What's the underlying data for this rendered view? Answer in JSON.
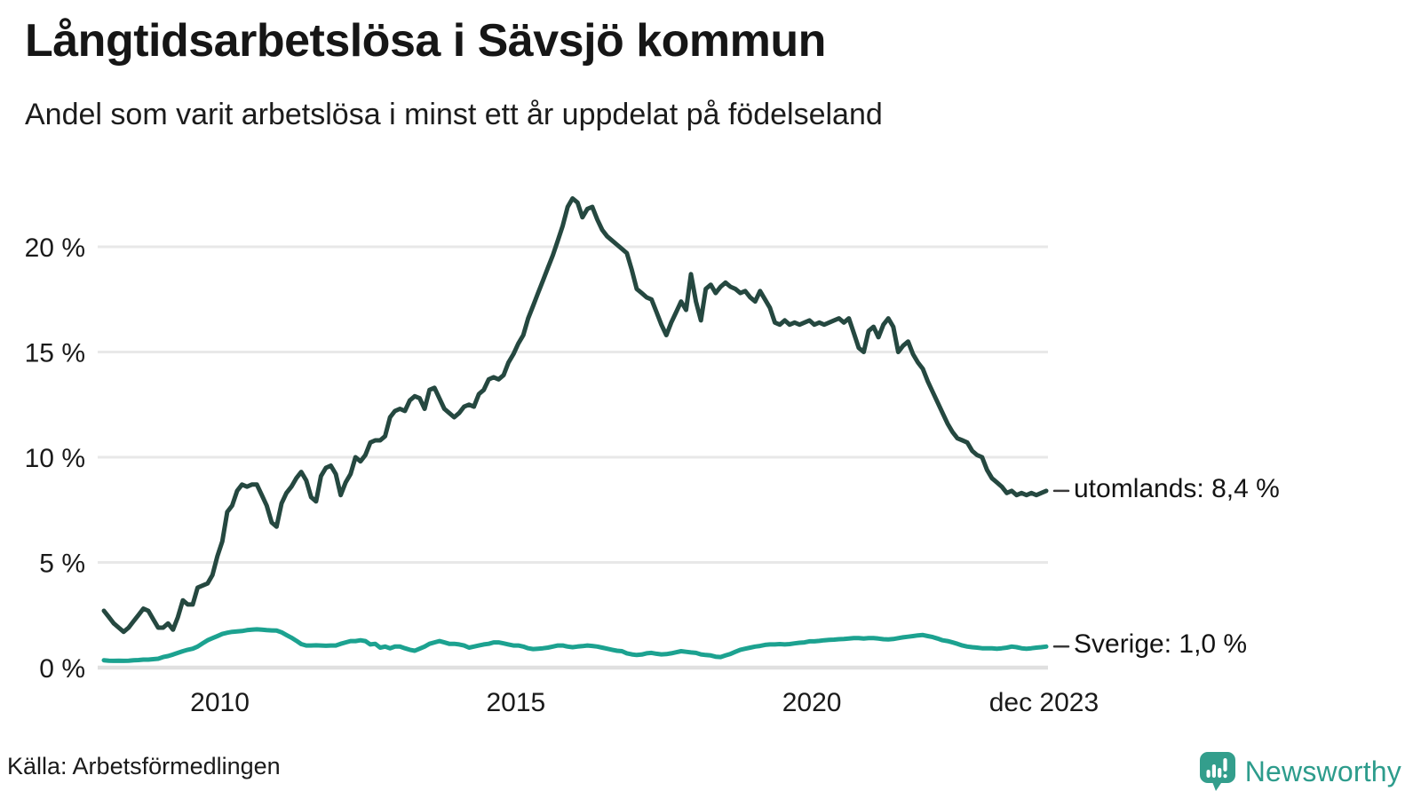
{
  "header": {
    "title": "Långtidsarbetslösa i Sävsjö kommun",
    "subtitle": "Andel som varit arbetslösa i minst ett år uppdelat på födelseland"
  },
  "footer": {
    "source": "Källa: Arbetsförmedlingen",
    "brand_name": "Newsworthy"
  },
  "colors": {
    "series_utomlands": "#254840",
    "series_sverige": "#1ca290",
    "gridline": "#e8e8e8",
    "zero_line": "#e0e0e0",
    "axis_text": "#1a1a1a",
    "end_tick": "#3a3a3a",
    "brand_teal": "#339e8c"
  },
  "chart_data": {
    "type": "line",
    "title": "Långtidsarbetslösa i Sävsjö kommun",
    "subtitle": "Andel som varit arbetslösa i minst ett år uppdelat på födelseland",
    "unit": "%",
    "x_is_time": true,
    "x_start_year": 2008,
    "points_per_year": 12,
    "x_end_label": "dec 2023",
    "ylim": [
      0,
      22.8
    ],
    "grid": "horizontal",
    "legend_position": "right-of-line-ends",
    "y_ticks": [
      {
        "label": "0 %",
        "v": 0
      },
      {
        "label": "5 %",
        "v": 5
      },
      {
        "label": "10 %",
        "v": 10
      },
      {
        "label": "15 %",
        "v": 15
      },
      {
        "label": "20 %",
        "v": 20
      }
    ],
    "x_ticks": [
      {
        "label": "2010",
        "t": 2010.0
      },
      {
        "label": "2015",
        "t": 2015.0
      },
      {
        "label": "2020",
        "t": 2020.0
      },
      {
        "label": "dec 2023",
        "t": 2023.92
      }
    ],
    "series": [
      {
        "name": "utomlands",
        "end_label": "utomlands: 8,4 %",
        "end_value_text": "8,4 %",
        "end_value": 8.4,
        "color": "#254840",
        "values": [
          2.7,
          2.4,
          2.1,
          1.9,
          1.7,
          1.9,
          2.2,
          2.5,
          2.8,
          2.7,
          2.3,
          1.9,
          1.9,
          2.1,
          1.8,
          2.4,
          3.2,
          3.0,
          3.0,
          3.8,
          3.9,
          4.0,
          4.4,
          5.3,
          6.0,
          7.4,
          7.7,
          8.4,
          8.7,
          8.6,
          8.7,
          8.7,
          8.2,
          7.7,
          6.9,
          6.7,
          7.8,
          8.3,
          8.6,
          9.0,
          9.3,
          8.9,
          8.1,
          7.9,
          9.1,
          9.5,
          9.6,
          9.2,
          8.2,
          8.8,
          9.2,
          10.0,
          9.8,
          10.1,
          10.7,
          10.8,
          10.8,
          11.0,
          11.9,
          12.2,
          12.3,
          12.2,
          12.7,
          12.9,
          12.8,
          12.3,
          13.2,
          13.3,
          12.8,
          12.3,
          12.1,
          11.9,
          12.1,
          12.4,
          12.5,
          12.4,
          13.0,
          13.2,
          13.7,
          13.8,
          13.7,
          13.9,
          14.5,
          14.9,
          15.4,
          15.8,
          16.6,
          17.2,
          17.8,
          18.4,
          19.0,
          19.6,
          20.3,
          21.0,
          21.9,
          22.3,
          22.1,
          21.4,
          21.8,
          21.9,
          21.3,
          20.8,
          20.5,
          20.3,
          20.1,
          19.9,
          19.7,
          18.9,
          18.0,
          17.8,
          17.6,
          17.5,
          16.9,
          16.3,
          15.8,
          16.4,
          16.9,
          17.4,
          17.0,
          18.7,
          17.4,
          16.5,
          18.0,
          18.2,
          17.8,
          18.1,
          18.3,
          18.1,
          18.0,
          17.8,
          17.9,
          17.6,
          17.4,
          17.9,
          17.5,
          17.1,
          16.4,
          16.3,
          16.5,
          16.3,
          16.4,
          16.3,
          16.4,
          16.5,
          16.3,
          16.4,
          16.3,
          16.4,
          16.5,
          16.6,
          16.4,
          16.6,
          15.9,
          15.2,
          15.0,
          16.0,
          16.2,
          15.7,
          16.3,
          16.6,
          16.2,
          15.0,
          15.3,
          15.5,
          14.9,
          14.5,
          14.2,
          13.6,
          13.1,
          12.6,
          12.1,
          11.6,
          11.2,
          10.9,
          10.8,
          10.7,
          10.3,
          10.1,
          10.0,
          9.4,
          9.0,
          8.8,
          8.6,
          8.3,
          8.4,
          8.2,
          8.3,
          8.2,
          8.3,
          8.2,
          8.3,
          8.4
        ]
      },
      {
        "name": "Sverige",
        "end_label": "Sverige: 1,0 %",
        "end_value_text": "1,0 %",
        "end_value": 1.0,
        "color": "#1ca290",
        "values": [
          0.35,
          0.33,
          0.32,
          0.33,
          0.32,
          0.33,
          0.35,
          0.36,
          0.38,
          0.38,
          0.4,
          0.42,
          0.5,
          0.55,
          0.62,
          0.7,
          0.78,
          0.85,
          0.9,
          1.0,
          1.15,
          1.3,
          1.4,
          1.5,
          1.6,
          1.66,
          1.7,
          1.72,
          1.74,
          1.78,
          1.8,
          1.82,
          1.8,
          1.78,
          1.77,
          1.76,
          1.68,
          1.55,
          1.42,
          1.28,
          1.12,
          1.05,
          1.05,
          1.06,
          1.05,
          1.04,
          1.05,
          1.05,
          1.13,
          1.2,
          1.26,
          1.26,
          1.3,
          1.26,
          1.1,
          1.13,
          0.95,
          1.0,
          0.92,
          1.0,
          1.0,
          0.92,
          0.85,
          0.8,
          0.9,
          1.0,
          1.13,
          1.2,
          1.26,
          1.2,
          1.13,
          1.13,
          1.1,
          1.05,
          0.95,
          1.0,
          1.05,
          1.1,
          1.13,
          1.2,
          1.2,
          1.15,
          1.1,
          1.05,
          1.05,
          1.0,
          0.92,
          0.88,
          0.9,
          0.92,
          0.95,
          1.0,
          1.05,
          1.05,
          1.0,
          0.97,
          1.0,
          1.02,
          1.05,
          1.03,
          1.0,
          0.95,
          0.9,
          0.85,
          0.8,
          0.78,
          0.68,
          0.63,
          0.6,
          0.62,
          0.68,
          0.7,
          0.66,
          0.63,
          0.64,
          0.68,
          0.73,
          0.78,
          0.75,
          0.72,
          0.7,
          0.63,
          0.6,
          0.58,
          0.52,
          0.5,
          0.58,
          0.65,
          0.75,
          0.85,
          0.9,
          0.95,
          1.0,
          1.03,
          1.08,
          1.1,
          1.1,
          1.12,
          1.1,
          1.12,
          1.15,
          1.18,
          1.2,
          1.25,
          1.25,
          1.27,
          1.3,
          1.32,
          1.33,
          1.35,
          1.36,
          1.38,
          1.4,
          1.4,
          1.38,
          1.4,
          1.4,
          1.38,
          1.35,
          1.34,
          1.36,
          1.4,
          1.44,
          1.47,
          1.5,
          1.53,
          1.55,
          1.5,
          1.45,
          1.38,
          1.3,
          1.26,
          1.2,
          1.13,
          1.05,
          1.0,
          0.97,
          0.95,
          0.92,
          0.92,
          0.92,
          0.9,
          0.92,
          0.95,
          1.0,
          0.97,
          0.92,
          0.9,
          0.92,
          0.95,
          0.97,
          1.0
        ]
      }
    ]
  }
}
